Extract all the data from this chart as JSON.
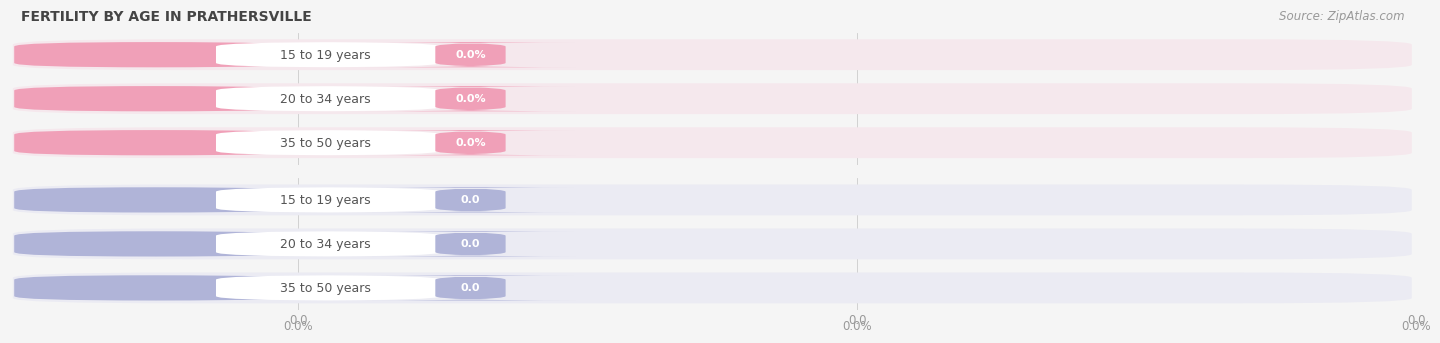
{
  "title": "FERTILITY BY AGE IN PRATHERSVILLE",
  "source": "Source: ZipAtlas.com",
  "top_group": {
    "categories": [
      "15 to 19 years",
      "20 to 34 years",
      "35 to 50 years"
    ],
    "values": [
      0.0,
      0.0,
      0.0
    ],
    "bar_bg_color": "#ebebf3",
    "label_circle_color": "#b0b4d8",
    "value_pill_color": "#b0b4d8",
    "value_label": "0.0",
    "tick_labels": [
      "0.0",
      "0.0",
      "0.0"
    ]
  },
  "bottom_group": {
    "categories": [
      "15 to 19 years",
      "20 to 34 years",
      "35 to 50 years"
    ],
    "values": [
      0.0,
      0.0,
      0.0
    ],
    "bar_bg_color": "#f5e8ed",
    "label_circle_color": "#f0a0b8",
    "value_pill_color": "#f0a0b8",
    "value_label": "0.0%",
    "tick_labels": [
      "0.0%",
      "0.0%",
      "0.0%"
    ]
  },
  "fig_bg_color": "#f5f5f5",
  "title_color": "#444444",
  "source_color": "#999999",
  "tick_color": "#999999",
  "grid_color": "#cccccc",
  "label_text_color": "#555555",
  "white": "#ffffff",
  "title_fontsize": 10,
  "source_fontsize": 8.5,
  "label_fontsize": 9,
  "value_fontsize": 8,
  "tick_fontsize": 8.5
}
